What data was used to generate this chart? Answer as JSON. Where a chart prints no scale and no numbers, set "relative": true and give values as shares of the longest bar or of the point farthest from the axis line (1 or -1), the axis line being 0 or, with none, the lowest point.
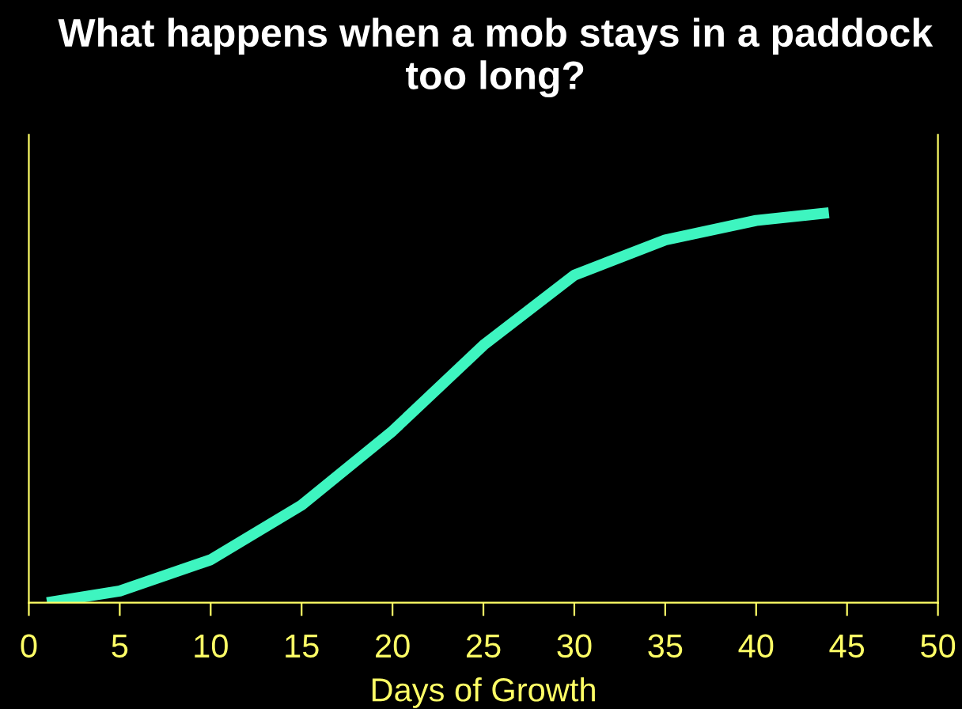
{
  "chart_data": {
    "type": "line",
    "title": "What happens when a mob stays in a paddock too long?",
    "xlabel": "Days of Growth",
    "relative": true,
    "x": [
      1,
      5,
      10,
      15,
      20,
      25,
      30,
      35,
      40,
      44
    ],
    "series": [
      {
        "color": "#3ef5c0",
        "values": [
          0.0,
          0.03,
          0.11,
          0.25,
          0.44,
          0.66,
          0.84,
          0.93,
          0.98,
          1.0
        ]
      }
    ],
    "xlim": [
      0,
      50
    ],
    "xticks": [
      0,
      5,
      10,
      15,
      20,
      25,
      30,
      35,
      40,
      45,
      50
    ],
    "grid": false,
    "legend": false,
    "marker": "none",
    "line_style": "solid"
  }
}
